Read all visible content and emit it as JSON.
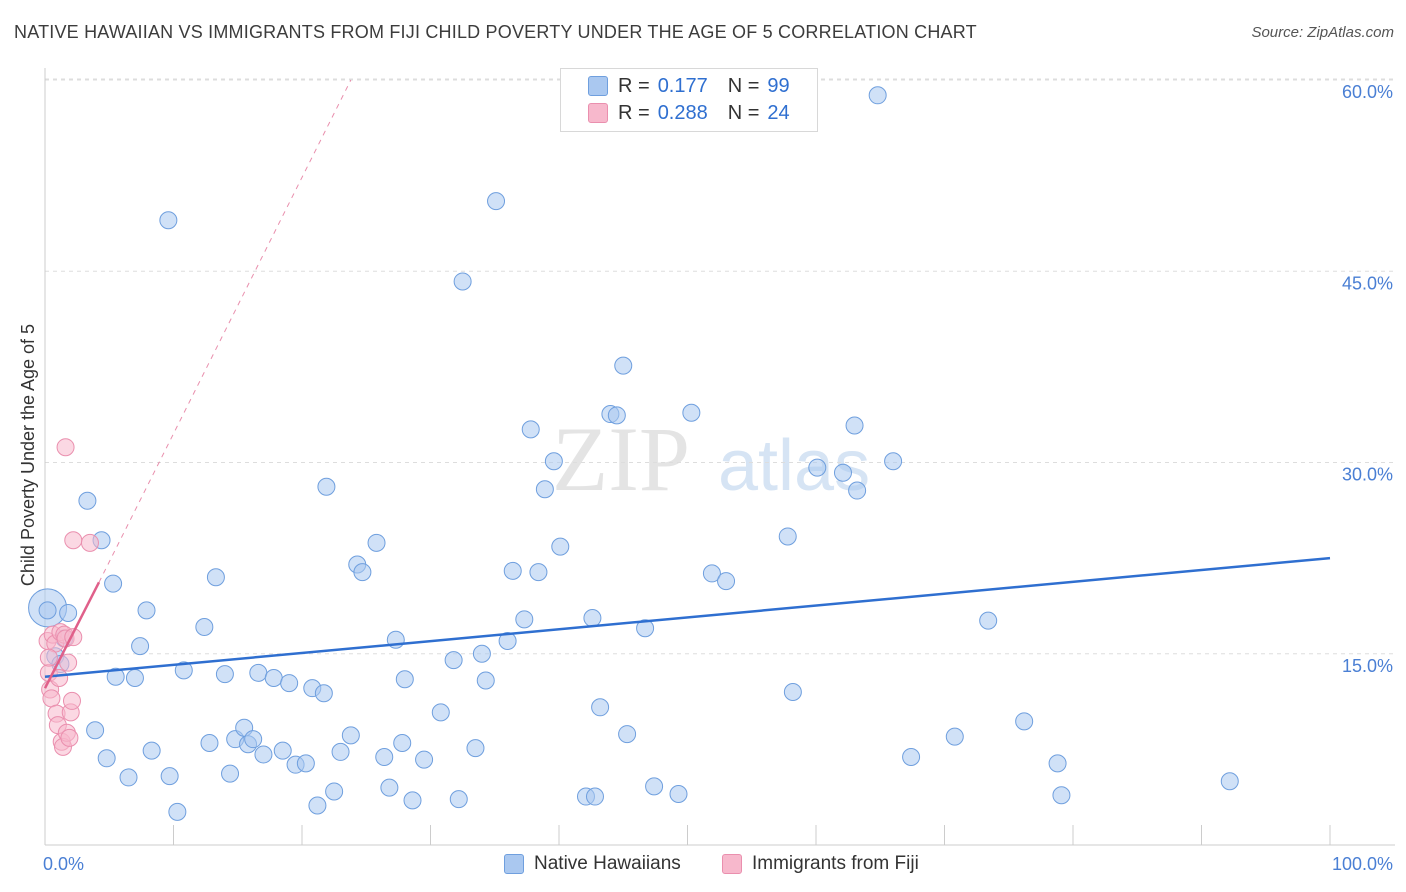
{
  "title": "NATIVE HAWAIIAN VS IMMIGRANTS FROM FIJI CHILD POVERTY UNDER THE AGE OF 5 CORRELATION CHART",
  "source": "Source: ZipAtlas.com",
  "watermark": {
    "zip": "ZIP",
    "atlas": "atlas"
  },
  "legend": [
    {
      "r_label": "R =",
      "r_value": "0.177",
      "n_label": "N =",
      "n_value": "99"
    },
    {
      "r_label": "R =",
      "r_value": "0.288",
      "n_label": "N =",
      "n_value": "24"
    }
  ],
  "colors": {
    "blue_fill": "#aac8f0",
    "blue_stroke": "#6f9fde",
    "blue_line": "#2f6fd0",
    "pink_fill": "#f7b8cc",
    "pink_stroke": "#ea8fae",
    "pink_line": "#e0608a",
    "axis_text": "#4a7fd4",
    "grid": "#dddddd"
  },
  "chart_data": {
    "type": "scatter",
    "title": "NATIVE HAWAIIAN VS IMMIGRANTS FROM FIJI CHILD POVERTY UNDER THE AGE OF 5 CORRELATION CHART",
    "xlabel": "",
    "ylabel": "Child Poverty Under the Age of 5",
    "xlim": [
      0,
      100
    ],
    "ylim": [
      0,
      60
    ],
    "x_tick_labels": [
      "0.0%",
      "100.0%"
    ],
    "y_ticks": [
      15,
      30,
      45,
      60
    ],
    "y_tick_labels": [
      "15.0%",
      "30.0%",
      "45.0%",
      "60.0%"
    ],
    "series": [
      {
        "name": "Native Hawaiians",
        "color": "blue",
        "r": 0.177,
        "n": 99,
        "trend": {
          "x": [
            0,
            100
          ],
          "y": [
            13.2,
            22.5
          ]
        },
        "points": [
          [
            0.2,
            18.4
          ],
          [
            0.8,
            14.8
          ],
          [
            1.2,
            14.2
          ],
          [
            1.5,
            16.2
          ],
          [
            1.8,
            18.2
          ],
          [
            3.3,
            27.0
          ],
          [
            4.4,
            23.9
          ],
          [
            5.3,
            20.5
          ],
          [
            5.5,
            13.2
          ],
          [
            3.9,
            9.0
          ],
          [
            4.8,
            6.8
          ],
          [
            6.5,
            5.3
          ],
          [
            7.0,
            13.1
          ],
          [
            7.4,
            15.6
          ],
          [
            7.9,
            18.4
          ],
          [
            8.3,
            7.4
          ],
          [
            9.6,
            49.0
          ],
          [
            9.7,
            5.4
          ],
          [
            10.3,
            2.6
          ],
          [
            10.8,
            13.7
          ],
          [
            12.4,
            17.1
          ],
          [
            12.8,
            8.0
          ],
          [
            13.3,
            21.0
          ],
          [
            14.0,
            13.4
          ],
          [
            14.4,
            5.6
          ],
          [
            14.8,
            8.3
          ],
          [
            15.5,
            9.2
          ],
          [
            15.8,
            7.9
          ],
          [
            16.2,
            8.3
          ],
          [
            16.6,
            13.5
          ],
          [
            17.0,
            7.1
          ],
          [
            17.8,
            13.1
          ],
          [
            18.5,
            7.4
          ],
          [
            19.0,
            12.7
          ],
          [
            19.5,
            6.3
          ],
          [
            20.3,
            6.4
          ],
          [
            20.8,
            12.3
          ],
          [
            21.2,
            3.1
          ],
          [
            21.7,
            11.9
          ],
          [
            21.9,
            28.1
          ],
          [
            22.5,
            4.2
          ],
          [
            23.0,
            7.3
          ],
          [
            23.8,
            8.6
          ],
          [
            24.3,
            22.0
          ],
          [
            24.7,
            21.4
          ],
          [
            25.8,
            23.7
          ],
          [
            26.4,
            6.9
          ],
          [
            26.8,
            4.5
          ],
          [
            27.3,
            16.1
          ],
          [
            27.8,
            8.0
          ],
          [
            28.0,
            13.0
          ],
          [
            28.6,
            3.5
          ],
          [
            29.5,
            6.7
          ],
          [
            30.8,
            10.4
          ],
          [
            31.8,
            14.5
          ],
          [
            32.2,
            3.6
          ],
          [
            32.5,
            44.2
          ],
          [
            33.5,
            7.6
          ],
          [
            34.0,
            15.0
          ],
          [
            34.3,
            12.9
          ],
          [
            35.1,
            50.5
          ],
          [
            36.0,
            16.0
          ],
          [
            36.4,
            21.5
          ],
          [
            37.3,
            17.7
          ],
          [
            37.8,
            32.6
          ],
          [
            38.4,
            21.4
          ],
          [
            38.9,
            27.9
          ],
          [
            39.6,
            30.1
          ],
          [
            40.1,
            23.4
          ],
          [
            42.1,
            3.8
          ],
          [
            42.6,
            17.8
          ],
          [
            42.8,
            3.8
          ],
          [
            43.2,
            10.8
          ],
          [
            44.0,
            33.8
          ],
          [
            44.5,
            33.7
          ],
          [
            45.0,
            37.6
          ],
          [
            45.3,
            8.7
          ],
          [
            46.7,
            17.0
          ],
          [
            47.4,
            4.6
          ],
          [
            49.3,
            4.0
          ],
          [
            50.3,
            33.9
          ],
          [
            51.9,
            21.3
          ],
          [
            53.0,
            20.7
          ],
          [
            57.8,
            24.2
          ],
          [
            58.2,
            12.0
          ],
          [
            60.1,
            29.6
          ],
          [
            62.1,
            29.2
          ],
          [
            63.0,
            32.9
          ],
          [
            63.2,
            27.8
          ],
          [
            64.8,
            58.8
          ],
          [
            66.0,
            30.1
          ],
          [
            67.4,
            6.9
          ],
          [
            70.8,
            8.5
          ],
          [
            73.4,
            17.6
          ],
          [
            76.2,
            9.7
          ],
          [
            78.8,
            6.4
          ],
          [
            79.1,
            3.9
          ],
          [
            92.2,
            5.0
          ]
        ],
        "large_points": [
          [
            0.2,
            18.6
          ]
        ]
      },
      {
        "name": "Immigrants from Fiji",
        "color": "pink",
        "r": 0.288,
        "n": 24,
        "trend": {
          "x": [
            0,
            4.2
          ],
          "y": [
            12.3,
            20.6
          ]
        },
        "trend_dashed": {
          "x": [
            4.2,
            23.8
          ],
          "y": [
            20.6,
            60
          ]
        },
        "points": [
          [
            0.2,
            16.0
          ],
          [
            0.3,
            13.5
          ],
          [
            0.4,
            12.2
          ],
          [
            0.5,
            11.5
          ],
          [
            0.6,
            16.5
          ],
          [
            0.8,
            15.8
          ],
          [
            0.9,
            10.3
          ],
          [
            1.0,
            9.4
          ],
          [
            1.1,
            13.1
          ],
          [
            1.2,
            16.7
          ],
          [
            1.3,
            8.1
          ],
          [
            1.4,
            7.7
          ],
          [
            1.5,
            16.5
          ],
          [
            1.6,
            16.2
          ],
          [
            1.7,
            8.8
          ],
          [
            1.8,
            14.3
          ],
          [
            1.9,
            8.4
          ],
          [
            2.0,
            10.4
          ],
          [
            2.1,
            11.3
          ],
          [
            2.2,
            16.3
          ],
          [
            1.6,
            31.2
          ],
          [
            2.2,
            23.9
          ],
          [
            3.5,
            23.7
          ],
          [
            0.3,
            14.7
          ]
        ],
        "large_points": []
      }
    ]
  },
  "bottom_legend": [
    {
      "label": "Native Hawaiians"
    },
    {
      "label": "Immigrants from Fiji"
    }
  ]
}
